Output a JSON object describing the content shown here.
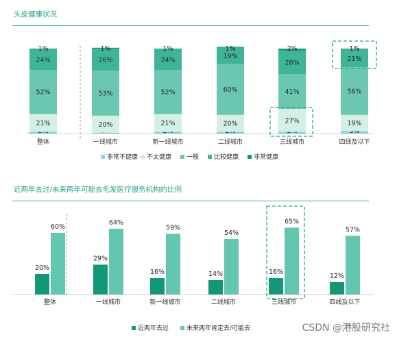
{
  "section1": {
    "title": "头皮健康状况"
  },
  "section2": {
    "title": "近两年去过/未来两年可能去毛发医疗服务机构的比例"
  },
  "watermark": "CSDN @港股研究社",
  "chart_data": [
    {
      "type": "bar",
      "stacked": true,
      "title": "头皮健康状况",
      "categories": [
        "整体",
        "一线城市",
        "新一线城市",
        "二线城市",
        "三线城市",
        "四线及以下"
      ],
      "series": [
        {
          "name": "非常不健康",
          "color": "#8fd3ea",
          "values": [
            2,
            1,
            2,
            2,
            2,
            3
          ]
        },
        {
          "name": "不太健康",
          "color": "#d4efe6",
          "values": [
            21,
            20,
            21,
            20,
            27,
            19
          ]
        },
        {
          "name": "一般",
          "color": "#6cc7b0",
          "values": [
            52,
            53,
            52,
            60,
            41,
            56
          ]
        },
        {
          "name": "比较健康",
          "color": "#3eb596",
          "values": [
            24,
            26,
            24,
            19,
            28,
            21
          ]
        },
        {
          "name": "非常健康",
          "color": "#129879",
          "values": [
            1,
            1,
            1,
            1,
            2,
            1
          ]
        }
      ],
      "value_suffix": "%",
      "legend_position": "bottom",
      "highlights": [
        {
          "category": "三线城市",
          "series": "不太健康"
        },
        {
          "category": "四线及以下",
          "series": "比较健康"
        }
      ]
    },
    {
      "type": "bar",
      "title": "近两年去过/未来两年可能去毛发医疗服务机构的比例",
      "categories": [
        "整体",
        "一线城市",
        "新一线城市",
        "二线城市",
        "三线城市",
        "四线及以下"
      ],
      "series": [
        {
          "name": "近两年去过",
          "color": "#129879",
          "values": [
            20,
            29,
            16,
            14,
            16,
            12
          ]
        },
        {
          "name": "未来两年肯定去/可能去",
          "color": "#62c6b0",
          "values": [
            60,
            64,
            59,
            54,
            65,
            57
          ]
        }
      ],
      "value_suffix": "%",
      "legend_position": "bottom",
      "highlights": [
        {
          "category": "三线城市"
        }
      ]
    }
  ]
}
